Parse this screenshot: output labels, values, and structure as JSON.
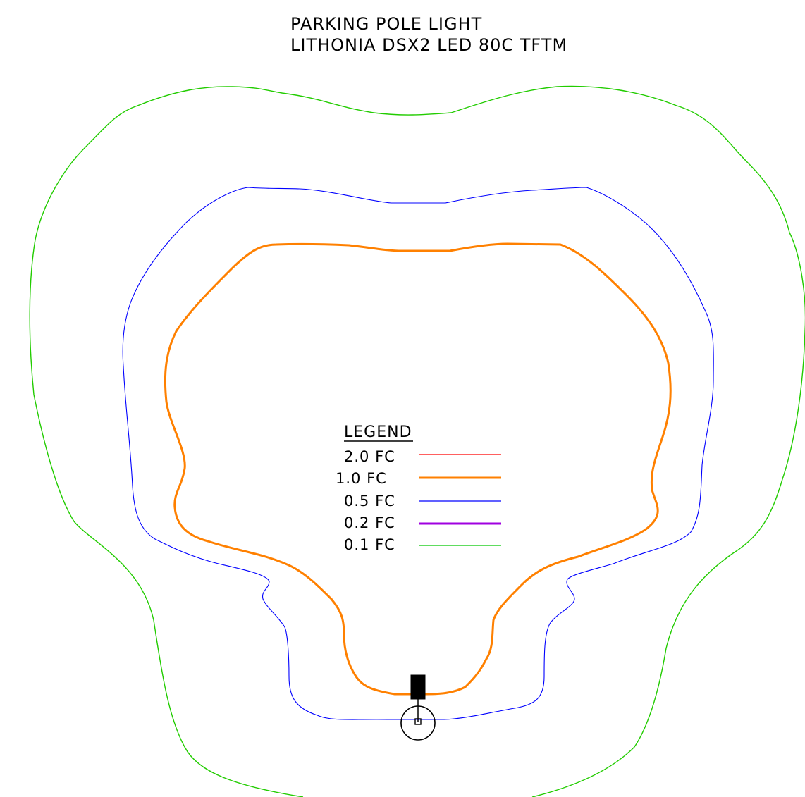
{
  "title": {
    "line1": "PARKING POLE LIGHT",
    "line2": "LITHONIA DSX2 LED 80C TFTM"
  },
  "legend": {
    "heading": "LEGEND",
    "items": [
      {
        "label": "2.0 FC",
        "color": "#ff0000",
        "weight": "thin"
      },
      {
        "label": "1.0 FC",
        "color": "#ff8000",
        "weight": "thick"
      },
      {
        "label": "0.5 FC",
        "color": "#0000ff",
        "weight": "thin"
      },
      {
        "label": "0.2 FC",
        "color": "#a000e0",
        "weight": "thick"
      },
      {
        "label": "0.1 FC",
        "color": "#00c800",
        "weight": "thin"
      }
    ]
  },
  "contours": {
    "footcandle_0_1": {
      "color": "#22cc00"
    },
    "footcandle_0_5": {
      "color": "#0000ff"
    },
    "footcandle_1_0": {
      "color": "#ff8000"
    }
  },
  "fixture": {
    "color": "#000000"
  }
}
